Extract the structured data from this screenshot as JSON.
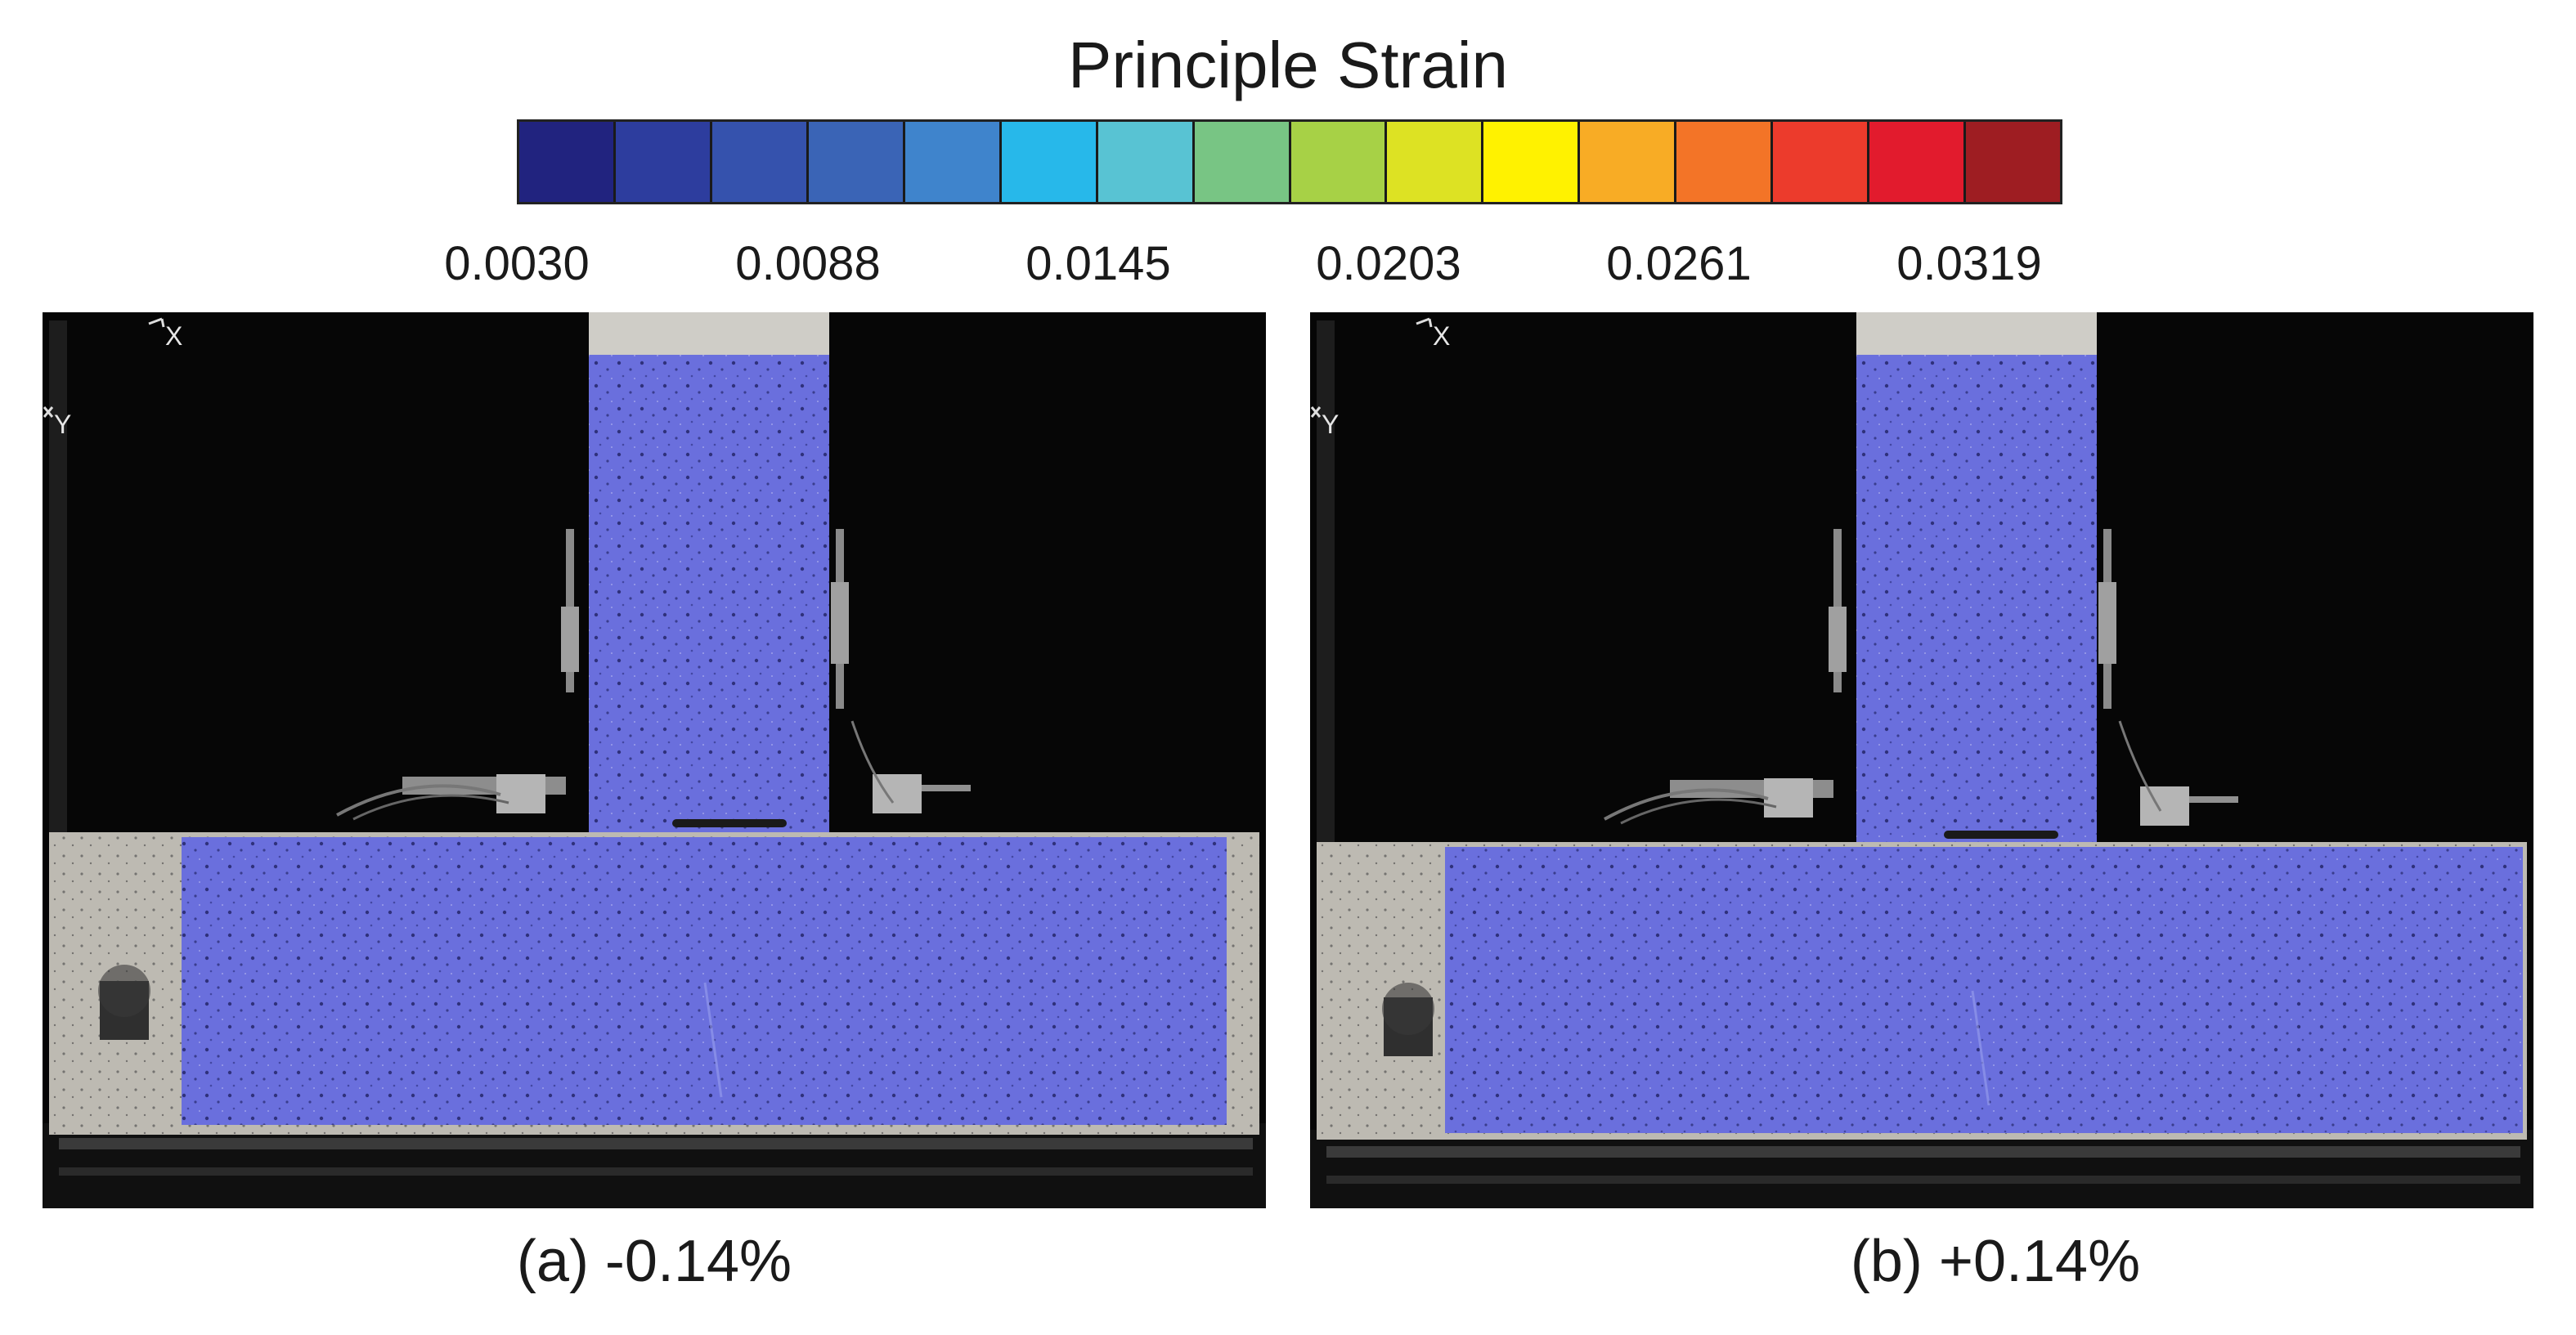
{
  "colorbar": {
    "title": "Principle Strain",
    "tick_labels": [
      "0.0030",
      "0.0088",
      "0.0145",
      "0.0203",
      "0.0261",
      "0.0319"
    ],
    "segment_colors": [
      "#21237f",
      "#2d3d9e",
      "#3552ad",
      "#3a64b6",
      "#3f84cc",
      "#27b8ea",
      "#58c3d3",
      "#78c584",
      "#a7d146",
      "#dde223",
      "#fff200",
      "#f8ac25",
      "#f37427",
      "#ec3b2c",
      "#e21b2d",
      "#9e1d22"
    ]
  },
  "panels": [
    {
      "axis_x": "X",
      "axis_y": "Y",
      "caption": "(a) -0.14%",
      "overlay_color": "#5d62e8"
    },
    {
      "axis_x": "X",
      "axis_y": "Y",
      "caption": "(b) +0.14%",
      "overlay_color": "#5d62e8"
    }
  ]
}
